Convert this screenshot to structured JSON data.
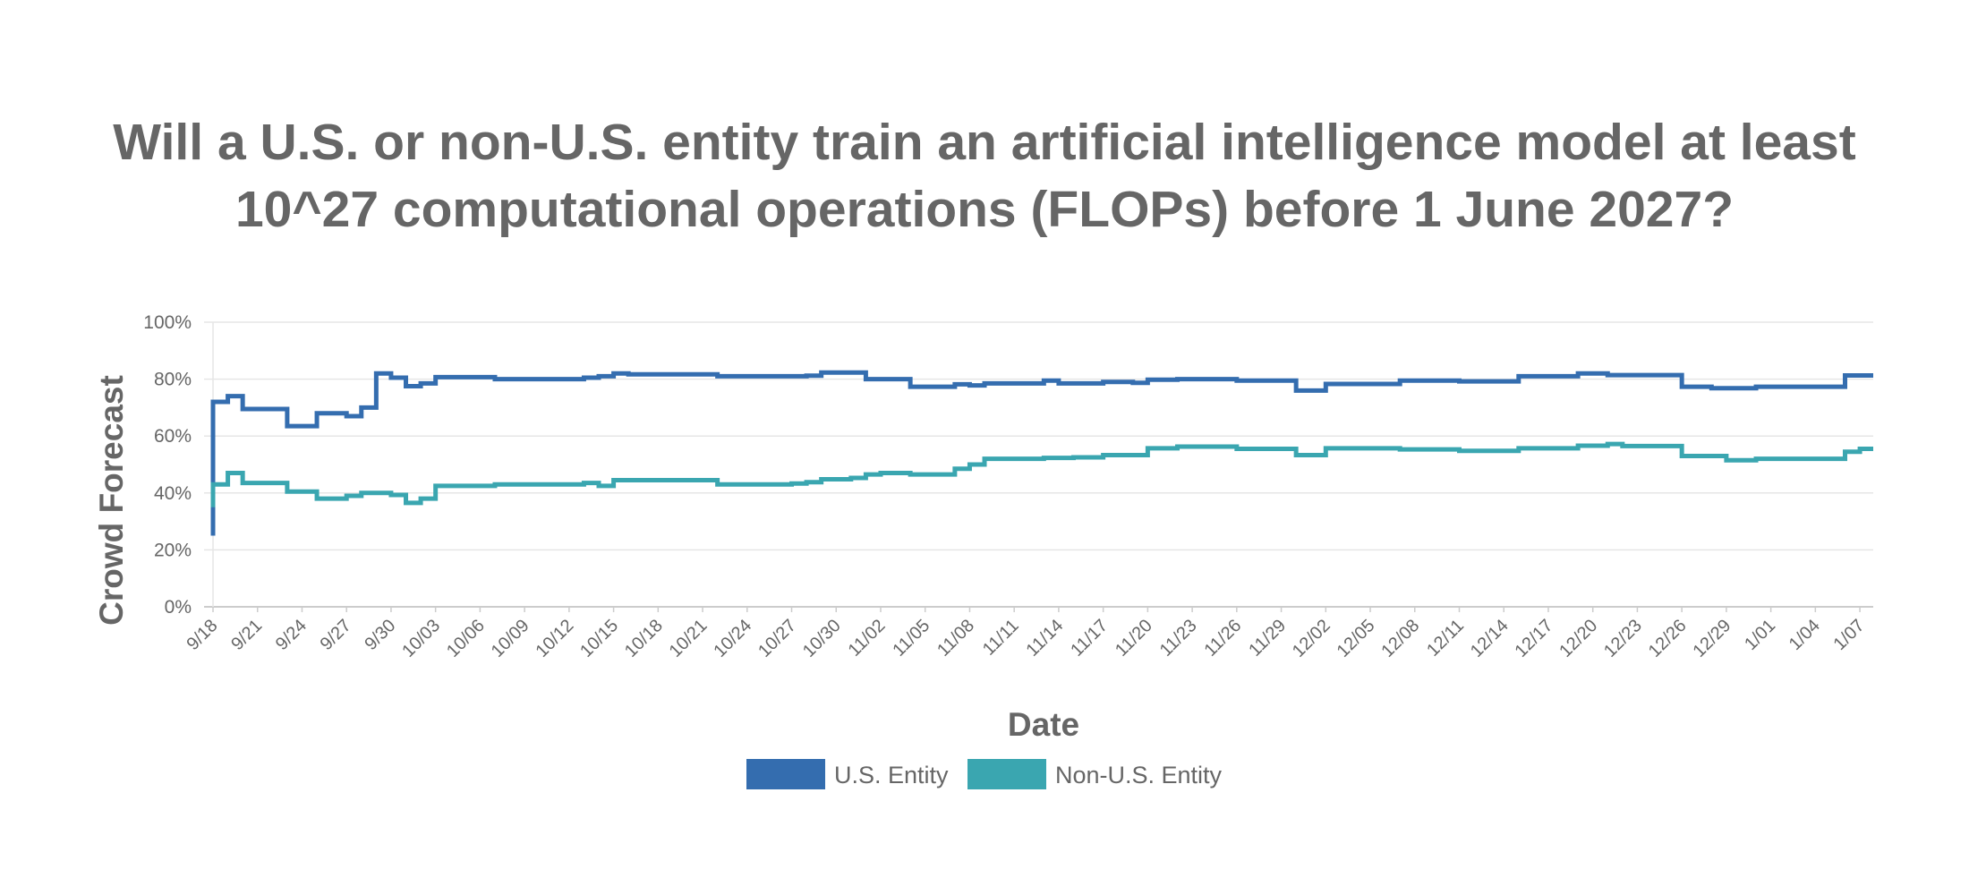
{
  "chart_data": {
    "type": "line",
    "step": true,
    "title": "Will a U.S. or non-U.S. entity train an artificial intelligence model at least 10^27 computational operations (FLOPs) before 1 June 2027?",
    "xlabel": "Date",
    "ylabel": "Crowd Forecast",
    "ylim": [
      0,
      100
    ],
    "yticks": [
      "0%",
      "20%",
      "40%",
      "60%",
      "80%",
      "100%"
    ],
    "xticks": [
      "9/18",
      "9/21",
      "9/24",
      "9/27",
      "9/30",
      "10/03",
      "10/06",
      "10/09",
      "10/12",
      "10/15",
      "10/18",
      "10/21",
      "10/24",
      "10/27",
      "10/30",
      "11/02",
      "11/05",
      "11/08",
      "11/11",
      "11/14",
      "11/17",
      "11/20",
      "11/23",
      "11/26",
      "11/29",
      "12/02",
      "12/05",
      "12/08",
      "12/11",
      "12/14",
      "12/17",
      "12/20",
      "12/23",
      "12/26",
      "12/29",
      "1/01",
      "1/04",
      "1/07"
    ],
    "grid": true,
    "legend_position": "bottom",
    "series": [
      {
        "name": "U.S. Entity",
        "color": "#346DAF",
        "points": [
          [
            "9/18",
            25
          ],
          [
            "9/18",
            53
          ],
          [
            "9/18",
            72
          ],
          [
            "9/19",
            74
          ],
          [
            "9/20",
            69.5
          ],
          [
            "9/23",
            63.5
          ],
          [
            "9/25",
            68
          ],
          [
            "9/27",
            67
          ],
          [
            "9/28",
            70
          ],
          [
            "9/29",
            82
          ],
          [
            "9/30",
            80.5
          ],
          [
            "10/01",
            77.5
          ],
          [
            "10/02",
            78.5
          ],
          [
            "10/03",
            80.7
          ],
          [
            "10/07",
            80
          ],
          [
            "10/13",
            80.5
          ],
          [
            "10/14",
            81
          ],
          [
            "10/15",
            82
          ],
          [
            "10/16",
            81.7
          ],
          [
            "10/22",
            81
          ],
          [
            "10/28",
            81.2
          ],
          [
            "10/29",
            82.3
          ],
          [
            "11/01",
            80
          ],
          [
            "11/04",
            77.3
          ],
          [
            "11/07",
            78.2
          ],
          [
            "11/08",
            77.8
          ],
          [
            "11/09",
            78.5
          ],
          [
            "11/13",
            79.5
          ],
          [
            "11/14",
            78.5
          ],
          [
            "11/17",
            79
          ],
          [
            "11/19",
            78.7
          ],
          [
            "11/20",
            79.8
          ],
          [
            "11/22",
            80
          ],
          [
            "11/26",
            79.5
          ],
          [
            "11/30",
            76
          ],
          [
            "12/02",
            78.3
          ],
          [
            "12/07",
            79.5
          ],
          [
            "12/11",
            79.2
          ],
          [
            "12/15",
            81
          ],
          [
            "12/19",
            82
          ],
          [
            "12/21",
            81.4
          ],
          [
            "12/26",
            77.3
          ],
          [
            "12/28",
            76.8
          ],
          [
            "12/31",
            77.3
          ],
          [
            "1/06",
            81.3
          ],
          [
            "1/07",
            81.3
          ]
        ]
      },
      {
        "name": "Non-U.S. Entity",
        "color": "#3AA6B0",
        "points": [
          [
            "9/18",
            35
          ],
          [
            "9/18",
            40
          ],
          [
            "9/18",
            43
          ],
          [
            "9/19",
            47
          ],
          [
            "9/20",
            43.5
          ],
          [
            "9/23",
            40.5
          ],
          [
            "9/25",
            38
          ],
          [
            "9/27",
            39
          ],
          [
            "9/28",
            40
          ],
          [
            "9/30",
            39.3
          ],
          [
            "10/01",
            36.5
          ],
          [
            "10/02",
            38
          ],
          [
            "10/03",
            42.5
          ],
          [
            "10/07",
            43
          ],
          [
            "10/13",
            43.5
          ],
          [
            "10/14",
            42.5
          ],
          [
            "10/15",
            44.5
          ],
          [
            "10/22",
            43
          ],
          [
            "10/27",
            43.3
          ],
          [
            "10/28",
            43.8
          ],
          [
            "10/29",
            44.8
          ],
          [
            "10/31",
            45.3
          ],
          [
            "11/01",
            46.5
          ],
          [
            "11/02",
            47
          ],
          [
            "11/04",
            46.5
          ],
          [
            "11/07",
            48.5
          ],
          [
            "11/08",
            50
          ],
          [
            "11/09",
            52
          ],
          [
            "11/13",
            52.3
          ],
          [
            "11/15",
            52.5
          ],
          [
            "11/17",
            53.3
          ],
          [
            "11/20",
            55.7
          ],
          [
            "11/22",
            56.3
          ],
          [
            "11/26",
            55.5
          ],
          [
            "11/30",
            53.3
          ],
          [
            "12/02",
            55.7
          ],
          [
            "12/07",
            55.3
          ],
          [
            "12/11",
            54.8
          ],
          [
            "12/15",
            55.7
          ],
          [
            "12/19",
            56.6
          ],
          [
            "12/21",
            57.2
          ],
          [
            "12/22",
            56.5
          ],
          [
            "12/26",
            53
          ],
          [
            "12/29",
            51.5
          ],
          [
            "12/31",
            52
          ],
          [
            "1/06",
            54.5
          ],
          [
            "1/07",
            55.5
          ]
        ]
      }
    ]
  }
}
